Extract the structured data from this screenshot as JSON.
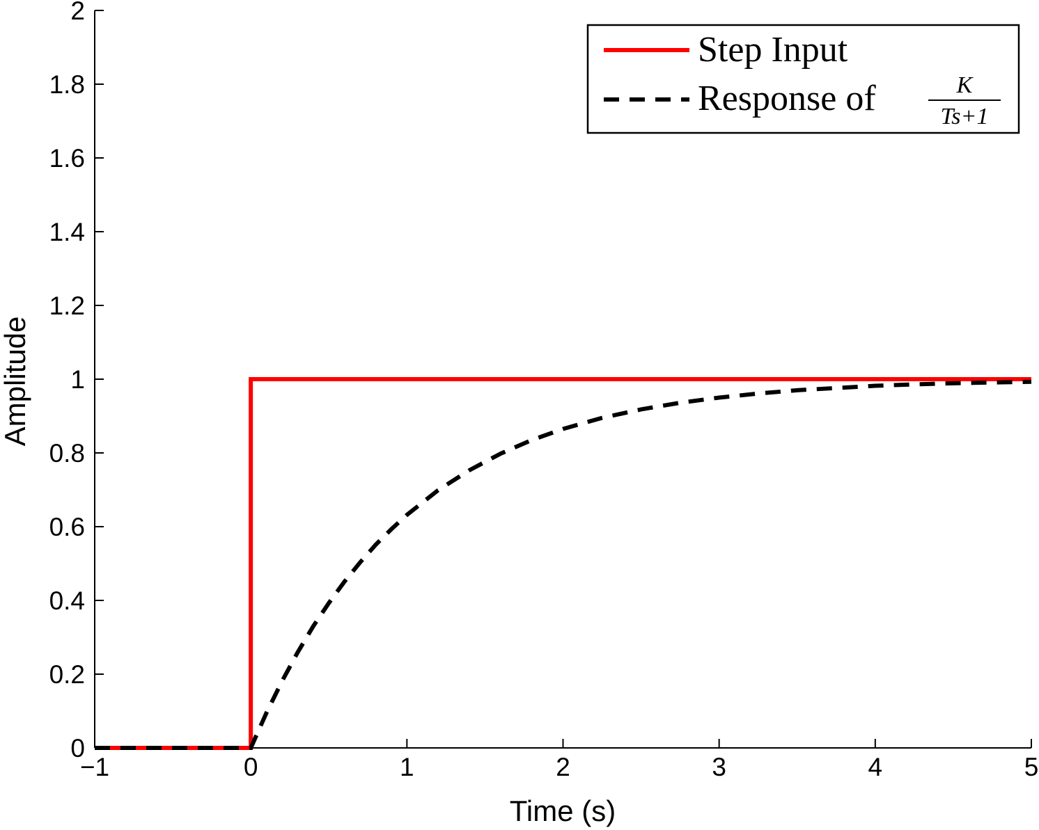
{
  "chart_data": {
    "type": "line",
    "title": "",
    "xlabel": "Time (s)",
    "ylabel": "Amplitude",
    "xlim": [
      -1,
      5
    ],
    "ylim": [
      0,
      2
    ],
    "xticks": [
      -1,
      0,
      1,
      2,
      3,
      4,
      5
    ],
    "xtick_labels": [
      "−1",
      "0",
      "1",
      "2",
      "3",
      "4",
      "5"
    ],
    "yticks": [
      0,
      0.2,
      0.4,
      0.6,
      0.8,
      1,
      1.2,
      1.4,
      1.6,
      1.8,
      2
    ],
    "ytick_labels": [
      "0",
      "0.2",
      "0.4",
      "0.6",
      "0.8",
      "1",
      "1.2",
      "1.4",
      "1.6",
      "1.8",
      "2"
    ],
    "grid": false,
    "legend_position": "top-right",
    "legend": {
      "entry1": "Step Input",
      "entry2_prefix": "Response of",
      "entry2_numerator": "K",
      "entry2_denominator": "Ts+1"
    },
    "series": [
      {
        "name": "Step Input",
        "style": "solid",
        "color": "#ff0000",
        "x": [
          -1,
          0,
          0,
          5
        ],
        "y": [
          0,
          0,
          1,
          1
        ]
      },
      {
        "name": "Response of K/(Ts+1)",
        "style": "dashed",
        "color": "#000000",
        "x": [
          -1,
          0,
          0.1,
          0.2,
          0.3,
          0.4,
          0.5,
          0.6,
          0.7,
          0.8,
          0.9,
          1.0,
          1.2,
          1.4,
          1.6,
          1.8,
          2.0,
          2.25,
          2.5,
          2.75,
          3.0,
          3.25,
          3.5,
          3.75,
          4.0,
          4.25,
          4.5,
          4.75,
          5.0
        ],
        "y": [
          0,
          0,
          0.095,
          0.181,
          0.259,
          0.33,
          0.393,
          0.451,
          0.503,
          0.551,
          0.593,
          0.632,
          0.699,
          0.753,
          0.798,
          0.835,
          0.865,
          0.895,
          0.918,
          0.936,
          0.95,
          0.961,
          0.97,
          0.976,
          0.982,
          0.986,
          0.989,
          0.991,
          0.993
        ]
      }
    ]
  }
}
